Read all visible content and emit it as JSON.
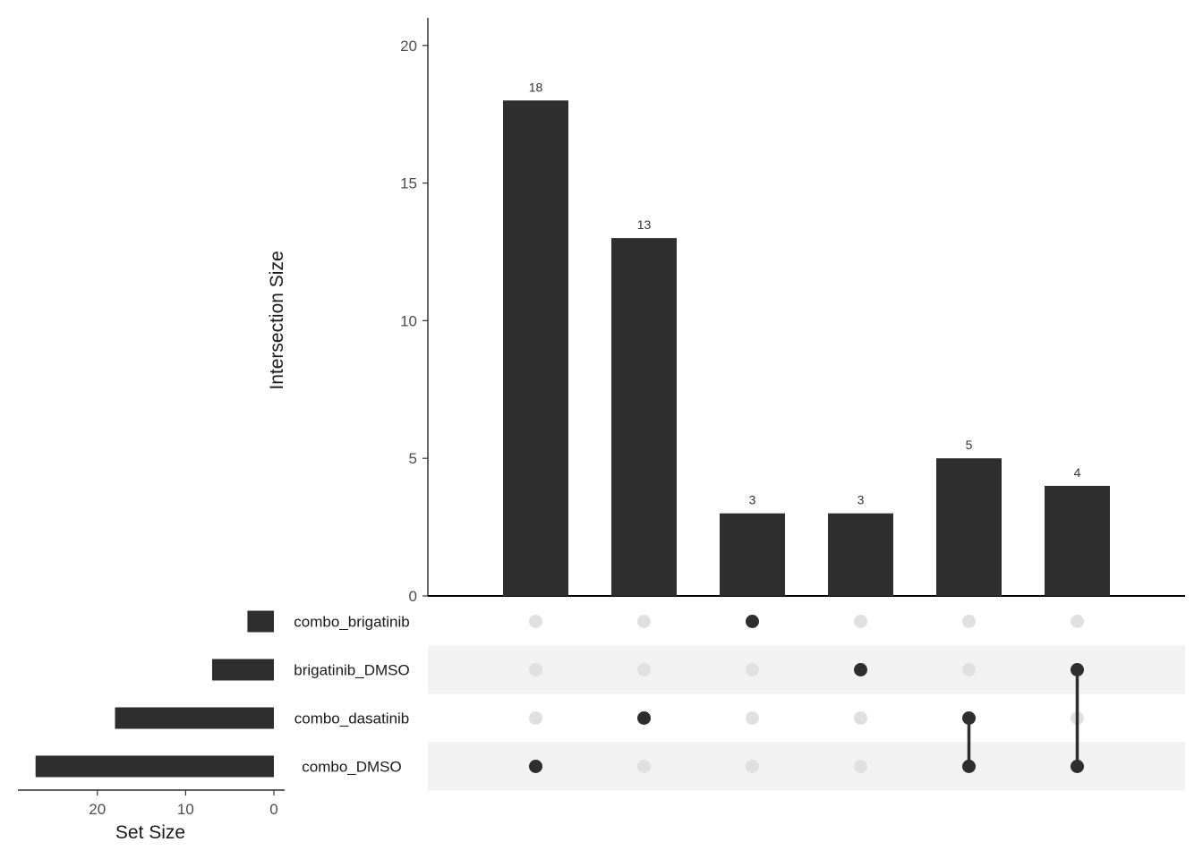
{
  "chart_data": {
    "type": "upset",
    "sets": [
      "combo_brigatinib",
      "brigatinib_DMSO",
      "combo_dasatinib",
      "combo_DMSO"
    ],
    "set_sizes": [
      3,
      7,
      18,
      27
    ],
    "intersections": [
      {
        "members": [
          "combo_DMSO"
        ],
        "size": 18
      },
      {
        "members": [
          "combo_dasatinib"
        ],
        "size": 13
      },
      {
        "members": [
          "combo_brigatinib"
        ],
        "size": 3
      },
      {
        "members": [
          "brigatinib_DMSO"
        ],
        "size": 3
      },
      {
        "members": [
          "combo_dasatinib",
          "combo_DMSO"
        ],
        "size": 5
      },
      {
        "members": [
          "brigatinib_DMSO",
          "combo_DMSO"
        ],
        "size": 4
      }
    ],
    "intersection_axis": {
      "label": "Intersection Size",
      "ylim": [
        0,
        21
      ],
      "ticks": [
        0,
        5,
        10,
        15,
        20
      ]
    },
    "set_size_axis": {
      "label": "Set Size",
      "xlim": [
        0,
        29
      ],
      "ticks": [
        20,
        10,
        0
      ],
      "reversed": true
    },
    "colors": {
      "bar": "#2e2e2e",
      "dot_active": "#2e2e2e",
      "dot_inactive": "#e0e0e0",
      "stripe": "#f2f2f2"
    }
  }
}
